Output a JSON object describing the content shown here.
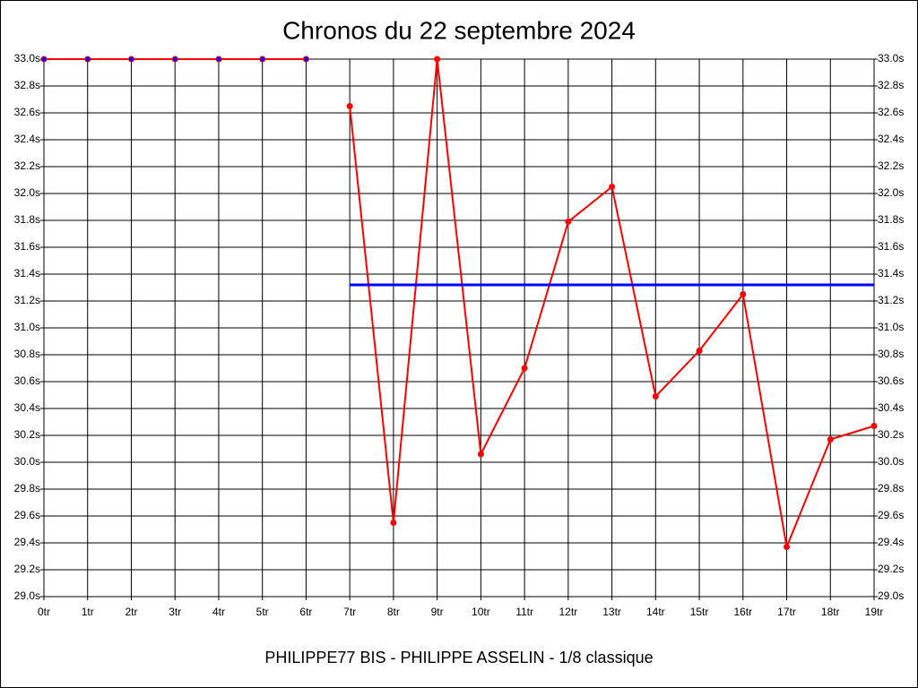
{
  "chart_data": {
    "type": "line",
    "title": "Chronos du 22 septembre 2024",
    "subtitle": "PHILIPPE77 BIS - PHILIPPE ASSELIN - 1/8 classique",
    "categories": [
      "0tr",
      "1tr",
      "2tr",
      "3tr",
      "4tr",
      "5tr",
      "6tr",
      "7tr",
      "8tr",
      "9tr",
      "10tr",
      "11tr",
      "12tr",
      "13tr",
      "14tr",
      "15tr",
      "16tr",
      "17tr",
      "18tr",
      "19tr"
    ],
    "series": [
      {
        "color": "#ff0000",
        "marker_color": "#0000ff",
        "values": [
          33.0,
          33.0,
          33.0,
          33.0,
          33.0,
          33.0,
          33.0,
          null,
          null,
          null,
          null,
          null,
          null,
          null,
          null,
          null,
          null,
          null,
          null,
          null
        ]
      },
      {
        "color": "#ff0000",
        "marker_color": "#ff0000",
        "values": [
          null,
          null,
          null,
          null,
          null,
          null,
          null,
          32.65,
          29.55,
          33.0,
          30.06,
          30.7,
          31.79,
          32.05,
          30.49,
          30.83,
          31.25,
          29.37,
          30.17,
          30.27
        ]
      },
      {
        "color": "#0000ff",
        "values": [
          null,
          null,
          null,
          null,
          null,
          null,
          null,
          31.32,
          31.32,
          31.32,
          31.32,
          31.32,
          31.32,
          31.32,
          31.32,
          31.32,
          31.32,
          31.32,
          31.32,
          31.32
        ]
      }
    ],
    "ylim": [
      29.0,
      33.0
    ],
    "yticks": [
      {
        "value": 29.0,
        "label": "29.0s"
      },
      {
        "value": 29.2,
        "label": "29.2s"
      },
      {
        "value": 29.4,
        "label": "29.4s"
      },
      {
        "value": 29.6,
        "label": "29.6s"
      },
      {
        "value": 29.8,
        "label": "29.8s"
      },
      {
        "value": 30.0,
        "label": "30.0s"
      },
      {
        "value": 30.2,
        "label": "30.2s"
      },
      {
        "value": 30.4,
        "label": "30.4s"
      },
      {
        "value": 30.6,
        "label": "30.6s"
      },
      {
        "value": 30.8,
        "label": "30.8s"
      },
      {
        "value": 31.0,
        "label": "31.0s"
      },
      {
        "value": 31.2,
        "label": "31.2s"
      },
      {
        "value": 31.4,
        "label": "31.4s"
      },
      {
        "value": 31.6,
        "label": "31.6s"
      },
      {
        "value": 31.8,
        "label": "31.8s"
      },
      {
        "value": 32.0,
        "label": "32.0s"
      },
      {
        "value": 32.2,
        "label": "32.2s"
      },
      {
        "value": 32.4,
        "label": "32.4s"
      },
      {
        "value": 32.6,
        "label": "32.6s"
      },
      {
        "value": 32.8,
        "label": "32.8s"
      },
      {
        "value": 33.0,
        "label": "33.0s"
      }
    ],
    "grid": true
  }
}
